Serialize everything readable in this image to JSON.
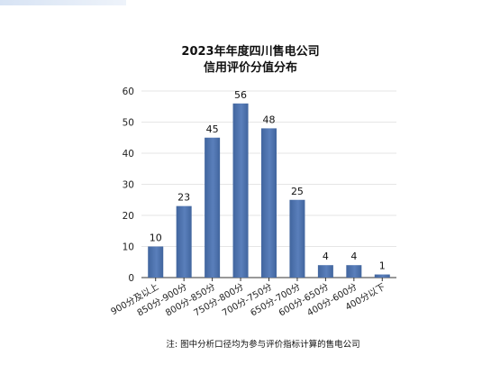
{
  "chart_data": {
    "type": "bar",
    "title": "2023年年度四川售电公司",
    "subtitle": "信用评价分值分布",
    "categories": [
      "900分及以上",
      "850分-900分",
      "800分-850分",
      "750分-800分",
      "700分-750分",
      "650分-700分",
      "600分-650分",
      "400分-600分",
      "400分以下"
    ],
    "values": [
      10,
      23,
      45,
      56,
      48,
      25,
      4,
      4,
      1
    ],
    "yticks": [
      "0",
      "10",
      "20",
      "30",
      "40",
      "50",
      "60"
    ],
    "ylim": [
      0,
      60
    ],
    "xlabel": "",
    "ylabel": "",
    "grid": true,
    "legend": "none",
    "bar_color": "#41659e",
    "bar_color_light": "#5a7fbb",
    "note": "注: 图中分析口径均为参与评价指标计算的售电公司"
  }
}
